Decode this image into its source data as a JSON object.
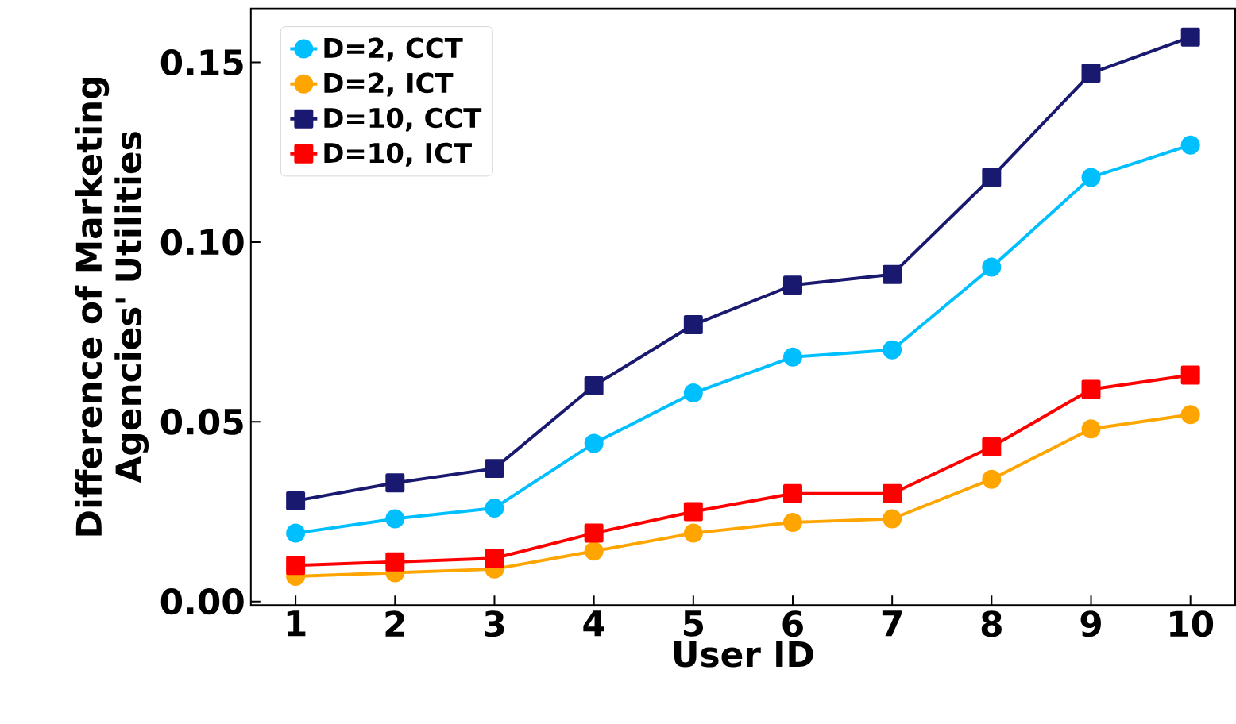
{
  "chart_data": {
    "type": "line",
    "xlabel": "User ID",
    "ylabel": "Difference of Marketing Agencies' Utilities",
    "x": [
      1,
      2,
      3,
      4,
      5,
      6,
      7,
      8,
      9,
      10
    ],
    "xlim": [
      0.55,
      10.45
    ],
    "xticks": [
      1,
      2,
      3,
      4,
      5,
      6,
      7,
      8,
      9,
      10
    ],
    "ylim": [
      -0.001,
      0.165
    ],
    "yticks": [
      {
        "value": 0,
        "label": "0.00"
      },
      {
        "value": 0.05,
        "label": "0.05"
      },
      {
        "value": 0.1,
        "label": "0.10"
      },
      {
        "value": 0.15,
        "label": "0.15"
      }
    ],
    "legend": "top left",
    "grid": false,
    "line_style": "solid",
    "series": [
      {
        "name": "D=2, CCT",
        "color": "#00bfff",
        "marker": "circle",
        "values": [
          0.019,
          0.023,
          0.026,
          0.044,
          0.058,
          0.068,
          0.07,
          0.093,
          0.118,
          0.127
        ]
      },
      {
        "name": "D=2, ICT",
        "color": "#ffa500",
        "marker": "circle",
        "values": [
          0.007,
          0.008,
          0.009,
          0.014,
          0.019,
          0.022,
          0.023,
          0.034,
          0.048,
          0.052
        ]
      },
      {
        "name": "D=10, CCT",
        "color": "#191970",
        "marker": "square",
        "values": [
          0.028,
          0.033,
          0.037,
          0.06,
          0.077,
          0.088,
          0.091,
          0.118,
          0.147,
          0.157
        ]
      },
      {
        "name": "D=10, ICT",
        "color": "#ff0000",
        "marker": "square",
        "values": [
          0.01,
          0.011,
          0.012,
          0.019,
          0.025,
          0.03,
          0.03,
          0.043,
          0.059,
          0.063
        ]
      }
    ]
  }
}
